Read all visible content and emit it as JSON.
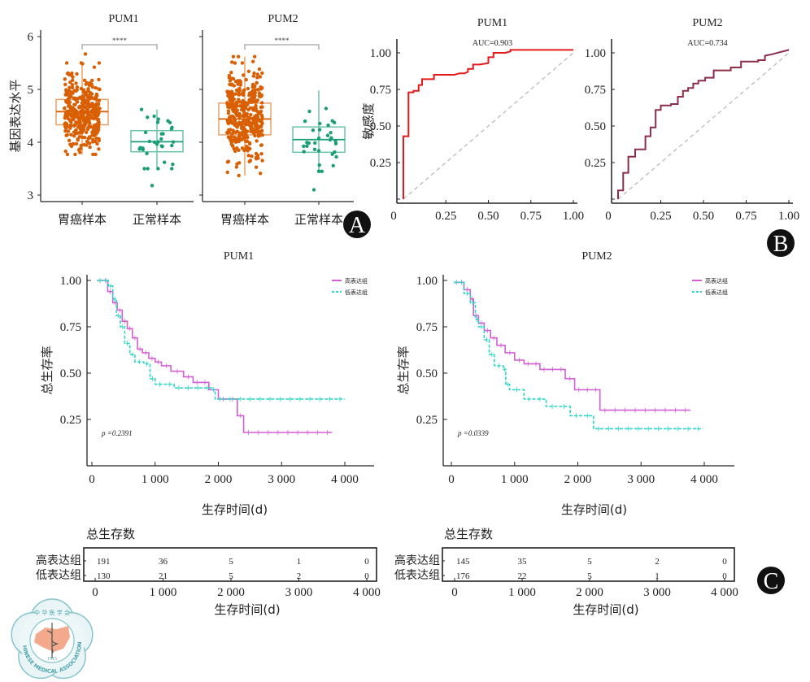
{
  "panel_labels": [
    "A",
    "B",
    "C"
  ],
  "colors": {
    "tumor": "#d95f02",
    "tumor_box": "#e8a06a",
    "normal": "#1b9e77",
    "normal_box": "#6cc3a6",
    "roc_pum1": "#e31a1c",
    "roc_pum2": "#8c2d4a",
    "diagonal": "#bbbbbb",
    "km_high": "#d35fd3",
    "km_low": "#2ed6c6",
    "axis": "#222222",
    "badge": "#111111"
  },
  "chart_data": [
    {
      "id": "box-pum1",
      "type": "box",
      "title": "PUM1",
      "ylabel": "基因表达水平",
      "xlabel": "",
      "ylim": [
        3,
        6
      ],
      "yticks": [
        "3",
        "4",
        "5",
        "6"
      ],
      "categories": [
        "胃癌样本",
        "正常样本"
      ],
      "significance": "****",
      "boxes": [
        {
          "name": "胃癌样本",
          "min": 3.77,
          "q1": 4.33,
          "median": 4.58,
          "q3": 4.81,
          "max": 5.5,
          "n_points": 375,
          "outliers_high": 5.67
        },
        {
          "name": "正常样本",
          "min": 3.5,
          "q1": 3.82,
          "median": 4.01,
          "q3": 4.22,
          "max": 4.62,
          "n_points": 32,
          "outliers_low": 3.18
        }
      ]
    },
    {
      "id": "box-pum2",
      "type": "box",
      "title": "PUM2",
      "ylabel": "",
      "ylim": [
        3,
        6
      ],
      "categories": [
        "胃癌样本",
        "正常样本"
      ],
      "significance": "****",
      "boxes": [
        {
          "name": "胃癌样本",
          "min": 3.37,
          "q1": 4.14,
          "median": 4.44,
          "q3": 4.74,
          "max": 5.62,
          "n_points": 375
        },
        {
          "name": "正常样本",
          "min": 3.45,
          "q1": 3.81,
          "median": 4.05,
          "q3": 4.29,
          "max": 4.98,
          "n_points": 32,
          "outliers_low": 3.1
        }
      ]
    },
    {
      "id": "roc-pum1",
      "type": "line",
      "title": "PUM1",
      "ylabel": "敏感度",
      "xlabel": "",
      "annotation": "AUC=0.903",
      "xlim": [
        0,
        1
      ],
      "ylim": [
        0,
        1
      ],
      "xticks": [
        "0",
        "0.25",
        "0.50",
        "0.75",
        "1.00"
      ],
      "yticks": [
        "0.25",
        "0.50",
        "0.75",
        "1.00"
      ],
      "diagonal": true,
      "x": [
        0,
        0,
        0.03,
        0.03,
        0.06,
        0.06,
        0.09,
        0.09,
        0.11,
        0.11,
        0.18,
        0.18,
        0.3,
        0.33,
        0.36,
        0.38,
        0.38,
        0.41,
        0.41,
        0.45,
        0.5,
        0.5,
        0.53,
        0.53,
        0.6,
        0.63,
        0.63,
        1.0
      ],
      "y": [
        0,
        0.43,
        0.43,
        0.73,
        0.73,
        0.74,
        0.74,
        0.78,
        0.78,
        0.82,
        0.82,
        0.85,
        0.85,
        0.86,
        0.86,
        0.87,
        0.89,
        0.89,
        0.92,
        0.92,
        0.93,
        0.97,
        0.97,
        1.0,
        1.0,
        1.01,
        1.02,
        1.02
      ]
    },
    {
      "id": "roc-pum2",
      "type": "line",
      "title": "PUM2",
      "annotation": "AUC=0.734",
      "xlim": [
        0,
        1
      ],
      "ylim": [
        0,
        1
      ],
      "xticks": [
        "0",
        "0.25",
        "0.50",
        "0.75",
        "1.00"
      ],
      "yticks": [
        "0.25",
        "0.50",
        "0.75",
        "1.00"
      ],
      "diagonal": true,
      "x": [
        0,
        0,
        0.03,
        0.03,
        0.06,
        0.06,
        0.1,
        0.1,
        0.16,
        0.16,
        0.19,
        0.19,
        0.22,
        0.22,
        0.25,
        0.25,
        0.31,
        0.31,
        0.35,
        0.35,
        0.38,
        0.38,
        0.41,
        0.41,
        0.44,
        0.44,
        0.47,
        0.47,
        0.51,
        0.51,
        0.56,
        0.56,
        0.66,
        0.66,
        0.72,
        0.72,
        0.82,
        0.82,
        0.86,
        0.86,
        0.9,
        1.0
      ],
      "y": [
        0,
        0.06,
        0.06,
        0.18,
        0.18,
        0.29,
        0.29,
        0.34,
        0.34,
        0.43,
        0.43,
        0.49,
        0.49,
        0.61,
        0.61,
        0.64,
        0.64,
        0.65,
        0.65,
        0.7,
        0.7,
        0.74,
        0.74,
        0.76,
        0.76,
        0.79,
        0.79,
        0.81,
        0.81,
        0.83,
        0.83,
        0.88,
        0.88,
        0.9,
        0.9,
        0.94,
        0.94,
        0.95,
        0.95,
        0.98,
        0.99,
        1.02
      ]
    },
    {
      "id": "km-pum1",
      "type": "line",
      "subtype": "kaplan-meier",
      "title": "PUM1",
      "ylabel": "总生存率",
      "xlabel": "生存时间(d)",
      "annotation": "p =0.2391",
      "xlim": [
        0,
        4200
      ],
      "ylim": [
        0,
        1
      ],
      "xticks": [
        "0",
        "1 000",
        "2 000",
        "3 000",
        "4 000"
      ],
      "yticks": [
        "0.25",
        "0.50",
        "0.75",
        "1.00"
      ],
      "legend": {
        "position": "top-right",
        "entries": [
          "高表达组",
          "低表达组"
        ]
      },
      "series": [
        {
          "name": "高表达组",
          "x": [
            80,
            180,
            250,
            330,
            400,
            480,
            560,
            640,
            720,
            800,
            900,
            1000,
            1100,
            1250,
            1450,
            1600,
            1850,
            2000,
            2300,
            2400,
            3800
          ],
          "y": [
            1.0,
            1.0,
            0.94,
            0.88,
            0.84,
            0.78,
            0.74,
            0.69,
            0.63,
            0.61,
            0.58,
            0.56,
            0.54,
            0.51,
            0.48,
            0.45,
            0.41,
            0.36,
            0.27,
            0.18,
            0.18
          ]
        },
        {
          "name": "低表达组",
          "x": [
            80,
            180,
            260,
            330,
            390,
            450,
            520,
            600,
            680,
            820,
            920,
            1000,
            1300,
            1900,
            1950,
            4000
          ],
          "y": [
            1.0,
            1.0,
            0.97,
            0.9,
            0.81,
            0.75,
            0.66,
            0.6,
            0.56,
            0.55,
            0.47,
            0.44,
            0.42,
            0.41,
            0.36,
            0.36
          ]
        }
      ]
    },
    {
      "id": "km-pum2",
      "type": "line",
      "subtype": "kaplan-meier",
      "title": "PUM2",
      "ylabel": "总生存率",
      "xlabel": "生存时间(d)",
      "annotation": "p =0.0339",
      "xlim": [
        0,
        4200
      ],
      "ylim": [
        0,
        1
      ],
      "xticks": [
        "0",
        "1 000",
        "2 000",
        "3 000",
        "4 000"
      ],
      "yticks": [
        "0.25",
        "0.50",
        "0.75",
        "1.00"
      ],
      "legend": {
        "position": "top-right",
        "entries": [
          "高表达组",
          "低表达组"
        ]
      },
      "series": [
        {
          "name": "高表达组",
          "x": [
            40,
            120,
            200,
            300,
            350,
            430,
            520,
            620,
            720,
            850,
            1000,
            1150,
            1400,
            1800,
            1950,
            2350,
            3780
          ],
          "y": [
            0.99,
            0.99,
            0.95,
            0.9,
            0.81,
            0.77,
            0.73,
            0.69,
            0.65,
            0.61,
            0.57,
            0.55,
            0.52,
            0.47,
            0.41,
            0.3,
            0.3
          ]
        },
        {
          "name": "低表达组",
          "x": [
            40,
            120,
            200,
            300,
            380,
            430,
            520,
            600,
            680,
            820,
            860,
            920,
            1150,
            1300,
            1500,
            1880,
            2250,
            3980
          ],
          "y": [
            0.99,
            0.99,
            0.93,
            0.88,
            0.79,
            0.75,
            0.68,
            0.6,
            0.54,
            0.52,
            0.44,
            0.41,
            0.36,
            0.36,
            0.32,
            0.27,
            0.2,
            0.2
          ]
        }
      ]
    },
    {
      "id": "risk-table-pum1",
      "type": "table",
      "title": "总生存数",
      "xlabel": "生存时间(d)",
      "columns": [
        "0",
        "1 000",
        "2 000",
        "3 000",
        "4 000"
      ],
      "rows": [
        {
          "label": "高表达组",
          "values": [
            "191",
            "36",
            "5",
            "1",
            "0"
          ]
        },
        {
          "label": "低表达组",
          "values": [
            "130",
            "21",
            "5",
            "2",
            "0"
          ]
        }
      ]
    },
    {
      "id": "risk-table-pum2",
      "type": "table",
      "title": "总生存数",
      "xlabel": "生存时间(d)",
      "columns": [
        "0",
        "1 000",
        "2 000",
        "3 000",
        "4 000"
      ],
      "rows": [
        {
          "label": "高表达组",
          "values": [
            "145",
            "35",
            "5",
            "2",
            "0"
          ]
        },
        {
          "label": "低表达组",
          "values": [
            "176",
            "22",
            "5",
            "1",
            "0"
          ]
        }
      ]
    }
  ],
  "logo": {
    "top_text": "中 华 医 学 会",
    "year": "1915",
    "bottom_text": "CHINESE MEDICAL ASSOCIATION"
  }
}
